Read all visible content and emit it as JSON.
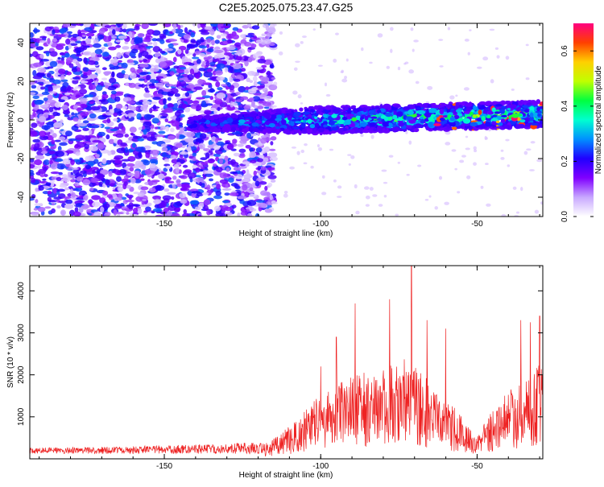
{
  "title": "C2E5.2025.075.23.47.G25",
  "chart_data": [
    {
      "type": "heatmap",
      "xlabel": "Height of straight line (km)",
      "ylabel": "Frequency (Hz)",
      "xlim": [
        -193,
        -29
      ],
      "ylim": [
        -50,
        50
      ],
      "xticks": [
        -150,
        -100,
        -50
      ],
      "yticks": [
        -40,
        -20,
        0,
        20,
        40
      ],
      "colorbar": {
        "label": "Normalized spectral amplitude",
        "range": [
          0,
          0.7
        ],
        "ticks": [
          "0.0",
          "0.2",
          "0.4",
          "0.6"
        ],
        "colormap": [
          "#ffffff",
          "#c8a8ff",
          "#8000ff",
          "#2000ff",
          "#0090ff",
          "#00ffd0",
          "#00ff40",
          "#c0ff00",
          "#ffd000",
          "#ff4000",
          "#ff0080"
        ]
      },
      "features": {
        "noise_region_x": [
          -193,
          -115
        ],
        "band_center_start": -2,
        "band_center_end": 3,
        "band_halfwidth_hz": 6
      }
    },
    {
      "type": "line",
      "xlabel": "Height of straight line (km)",
      "ylabel": "SNR (10 * v/v)",
      "xlim": [
        -193,
        -29
      ],
      "ylim": [
        0,
        4600
      ],
      "xticks": [
        -150,
        -100,
        -50
      ],
      "yticks": [
        1000,
        2000,
        3000,
        4000
      ],
      "series": [
        {
          "color": "#ee2222",
          "envelope": {
            "x": [
              -193,
              -160,
              -130,
              -118,
              -112,
              -106,
              -100,
              -95,
              -90,
              -85,
              -80,
              -75,
              -72,
              -68,
              -65,
              -60,
              -56,
              -53,
              -50,
              -47,
              -43,
              -40,
              -36,
              -33,
              -29
            ],
            "y": [
              180,
              220,
              280,
              330,
              600,
              950,
              1500,
              1700,
              1800,
              1900,
              2000,
              2100,
              2200,
              2000,
              1600,
              1300,
              1100,
              700,
              500,
              900,
              1300,
              1500,
              1700,
              1900,
              2100
            ]
          },
          "peaks": [
            {
              "x": -71,
              "y": 4600
            },
            {
              "x": -78,
              "y": 3800
            },
            {
              "x": -89,
              "y": 3700
            },
            {
              "x": -95,
              "y": 2900
            },
            {
              "x": -100,
              "y": 2200
            },
            {
              "x": -66,
              "y": 3300
            },
            {
              "x": -60,
              "y": 3100
            },
            {
              "x": -36,
              "y": 3300
            },
            {
              "x": -33,
              "y": 3250
            },
            {
              "x": -30,
              "y": 3400
            }
          ]
        }
      ]
    }
  ]
}
